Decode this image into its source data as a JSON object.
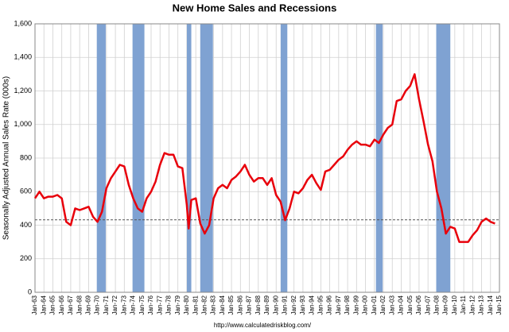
{
  "chart_data": {
    "type": "line",
    "title": "New Home Sales and Recessions",
    "ylabel": "Seasonally Adjusted Annual Sales Rate (000s)",
    "source": "http://www.calculatedriskblog.com/",
    "xlim": [
      1963,
      2015
    ],
    "xticks": [
      {
        "value": 1963,
        "label": "Jan-63"
      },
      {
        "value": 1964,
        "label": "Jan-64"
      },
      {
        "value": 1965,
        "label": "Jan-65"
      },
      {
        "value": 1966,
        "label": "Jan-66"
      },
      {
        "value": 1967,
        "label": "Jan-67"
      },
      {
        "value": 1968,
        "label": "Jan-68"
      },
      {
        "value": 1969,
        "label": "Jan-69"
      },
      {
        "value": 1970,
        "label": "Jan-70"
      },
      {
        "value": 1971,
        "label": "Jan-71"
      },
      {
        "value": 1972,
        "label": "Jan-72"
      },
      {
        "value": 1973,
        "label": "Jan-73"
      },
      {
        "value": 1974,
        "label": "Jan-74"
      },
      {
        "value": 1975,
        "label": "Jan-75"
      },
      {
        "value": 1976,
        "label": "Jan-76"
      },
      {
        "value": 1977,
        "label": "Jan-77"
      },
      {
        "value": 1978,
        "label": "Jan-78"
      },
      {
        "value": 1979,
        "label": "Jan-79"
      },
      {
        "value": 1980,
        "label": "Jan-80"
      },
      {
        "value": 1981,
        "label": "Jan-81"
      },
      {
        "value": 1982,
        "label": "Jan-82"
      },
      {
        "value": 1983,
        "label": "Jan-83"
      },
      {
        "value": 1984,
        "label": "Jan-84"
      },
      {
        "value": 1985,
        "label": "Jan-85"
      },
      {
        "value": 1986,
        "label": "Jan-86"
      },
      {
        "value": 1987,
        "label": "Jan-87"
      },
      {
        "value": 1988,
        "label": "Jan-88"
      },
      {
        "value": 1989,
        "label": "Jan-89"
      },
      {
        "value": 1990,
        "label": "Jan-90"
      },
      {
        "value": 1991,
        "label": "Jan-91"
      },
      {
        "value": 1992,
        "label": "Jan-92"
      },
      {
        "value": 1993,
        "label": "Jan-93"
      },
      {
        "value": 1994,
        "label": "Jan-94"
      },
      {
        "value": 1995,
        "label": "Jan-95"
      },
      {
        "value": 1996,
        "label": "Jan-96"
      },
      {
        "value": 1997,
        "label": "Jan-97"
      },
      {
        "value": 1998,
        "label": "Jan-98"
      },
      {
        "value": 1999,
        "label": "Jan-99"
      },
      {
        "value": 2000,
        "label": "Jan-00"
      },
      {
        "value": 2001,
        "label": "Jan-01"
      },
      {
        "value": 2002,
        "label": "Jan-02"
      },
      {
        "value": 2003,
        "label": "Jan-03"
      },
      {
        "value": 2004,
        "label": "Jan-04"
      },
      {
        "value": 2005,
        "label": "Jan-05"
      },
      {
        "value": 2006,
        "label": "Jan-06"
      },
      {
        "value": 2007,
        "label": "Jan-07"
      },
      {
        "value": 2008,
        "label": "Jan-08"
      },
      {
        "value": 2009,
        "label": "Jan-09"
      },
      {
        "value": 2010,
        "label": "Jan-10"
      },
      {
        "value": 2011,
        "label": "Jan-11"
      },
      {
        "value": 2012,
        "label": "Jan-12"
      },
      {
        "value": 2013,
        "label": "Jan-13"
      },
      {
        "value": 2014,
        "label": "Jan-14"
      },
      {
        "value": 2015,
        "label": "Jan-15"
      }
    ],
    "ylim": [
      0,
      1600
    ],
    "yticks": [
      0,
      {
        "value": 200,
        "label": "200"
      },
      {
        "value": 400,
        "label": "400"
      },
      {
        "value": 600,
        "label": "600"
      },
      {
        "value": 800,
        "label": "800"
      },
      {
        "value": 1000,
        "label": "1,000"
      },
      {
        "value": 1200,
        "label": "1,200"
      },
      {
        "value": 1400,
        "label": "1,400"
      },
      {
        "value": 1600,
        "label": "1,600"
      }
    ],
    "grid": true,
    "recessions": [
      {
        "start": 1969.92,
        "end": 1970.92
      },
      {
        "start": 1973.92,
        "end": 1975.25
      },
      {
        "start": 1980.0,
        "end": 1980.5
      },
      {
        "start": 1981.5,
        "end": 1982.92
      },
      {
        "start": 1990.5,
        "end": 1991.25
      },
      {
        "start": 2001.17,
        "end": 2001.92
      },
      {
        "start": 2007.92,
        "end": 2009.5
      }
    ],
    "recession_color": "#7fa2d2",
    "hline": 432,
    "series": [
      {
        "color": "#e8000b",
        "x": [
          1963,
          1963.5,
          1964,
          1964.5,
          1965,
          1965.5,
          1966,
          1966.5,
          1967,
          1967.5,
          1968,
          1968.5,
          1969,
          1969.5,
          1970,
          1970.5,
          1971,
          1971.5,
          1972,
          1972.5,
          1973,
          1973.5,
          1974,
          1974.5,
          1975,
          1975.5,
          1976,
          1976.5,
          1977,
          1977.5,
          1978,
          1978.5,
          1979,
          1979.5,
          1980,
          1980.2,
          1980.5,
          1981,
          1981.5,
          1982,
          1982.5,
          1983,
          1983.5,
          1984,
          1984.5,
          1985,
          1985.5,
          1986,
          1986.5,
          1987,
          1987.5,
          1988,
          1988.5,
          1989,
          1989.5,
          1990,
          1990.5,
          1991,
          1991.5,
          1992,
          1992.5,
          1993,
          1993.5,
          1994,
          1994.5,
          1995,
          1995.5,
          1996,
          1996.5,
          1997,
          1997.5,
          1998,
          1998.5,
          1999,
          1999.5,
          2000,
          2000.5,
          2001,
          2001.5,
          2002,
          2002.5,
          2003,
          2003.5,
          2004,
          2004.5,
          2005,
          2005.5,
          2006,
          2006.5,
          2007,
          2007.5,
          2008,
          2008.5,
          2009,
          2009.5,
          2010,
          2010.5,
          2011,
          2011.5,
          2012,
          2012.5,
          2013,
          2013.5,
          2014,
          2014.5
        ],
        "values": [
          560,
          600,
          560,
          570,
          570,
          580,
          560,
          420,
          400,
          500,
          490,
          500,
          510,
          450,
          420,
          480,
          620,
          680,
          720,
          760,
          750,
          640,
          560,
          500,
          480,
          560,
          600,
          660,
          760,
          830,
          820,
          820,
          750,
          740,
          520,
          380,
          550,
          560,
          410,
          350,
          400,
          560,
          620,
          640,
          620,
          670,
          690,
          720,
          760,
          700,
          660,
          680,
          680,
          640,
          680,
          580,
          540,
          430,
          500,
          600,
          590,
          620,
          670,
          700,
          650,
          610,
          720,
          730,
          760,
          790,
          810,
          850,
          880,
          900,
          880,
          880,
          870,
          910,
          890,
          940,
          980,
          1000,
          1140,
          1150,
          1200,
          1230,
          1300,
          1150,
          1020,
          880,
          780,
          600,
          500,
          350,
          390,
          380,
          300,
          300,
          300,
          340,
          370,
          420,
          440,
          420,
          410
        ]
      }
    ]
  }
}
